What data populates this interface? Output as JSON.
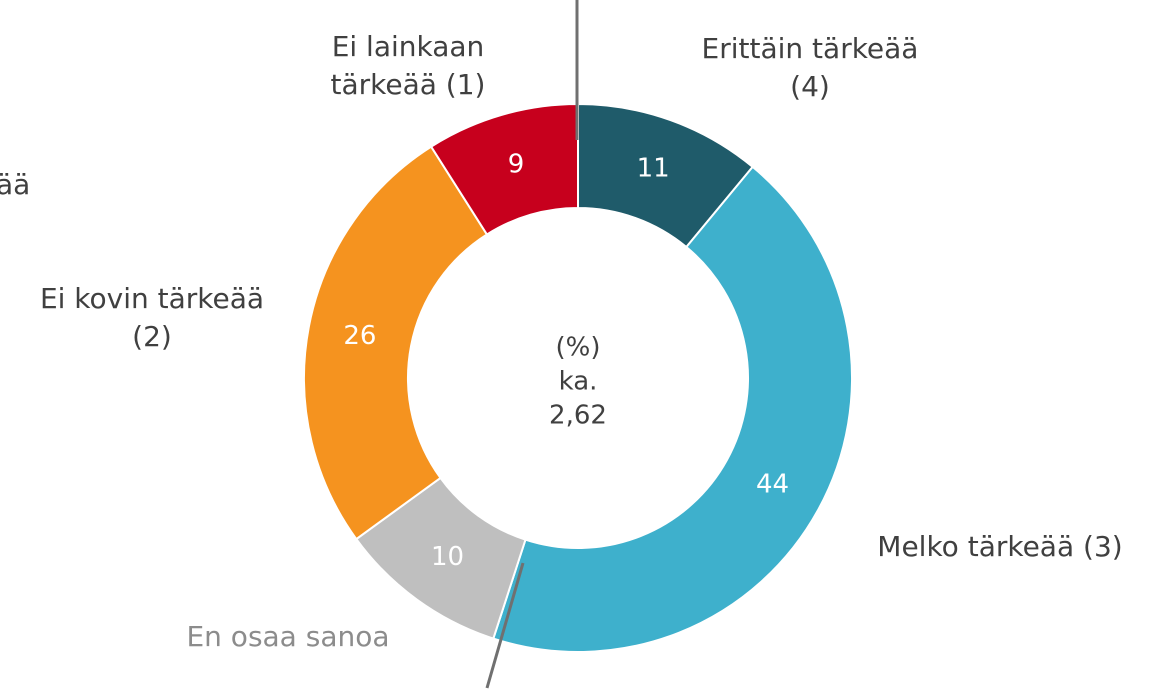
{
  "chart_data": {
    "type": "donut",
    "categories": [
      "Erittäin tärkeää\n(4)",
      "Melko tärkeää (3)",
      "En osaa sanoa",
      "Ei kovin tärkeää\n(2)",
      "Ei lainkaan\ntärkeää (1)"
    ],
    "values": [
      11,
      44,
      10,
      26,
      9
    ],
    "colors": [
      "#1f5b6a",
      "#3eb0cc",
      "#bfbfbf",
      "#f5931f",
      "#c7001d"
    ],
    "label_colors": [
      "#404040",
      "#404040",
      "#8c8c8c",
      "#404040",
      "#404040"
    ],
    "center_text": [
      "(%)",
      "ka.",
      "2,62"
    ],
    "clipped_label": "ää"
  }
}
